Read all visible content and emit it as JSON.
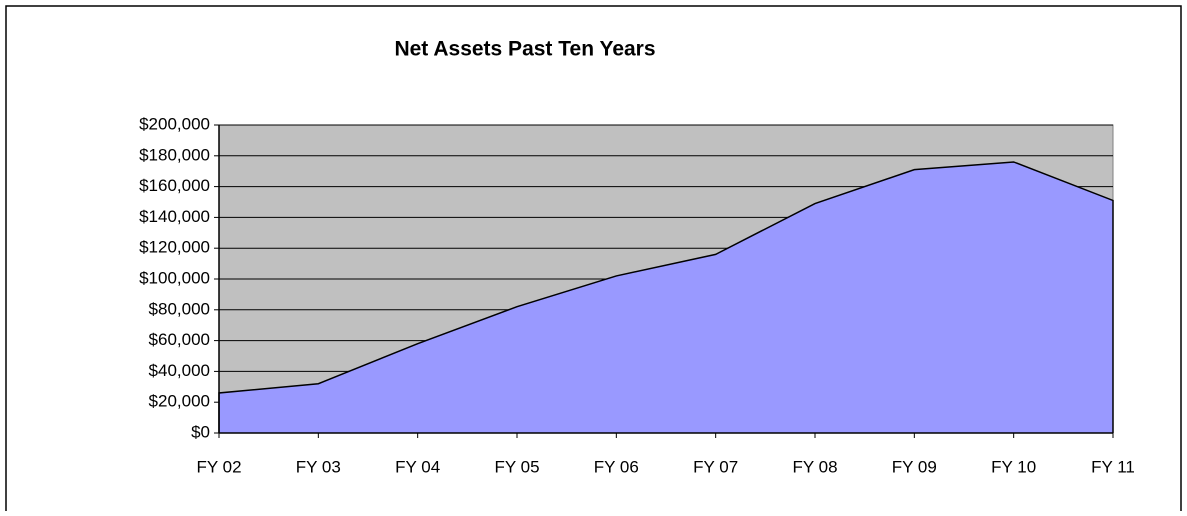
{
  "chart_data": {
    "type": "area",
    "title": "Net Assets Past Ten Years",
    "categories": [
      "FY 02",
      "FY 03",
      "FY 04",
      "FY 05",
      "FY 06",
      "FY 07",
      "FY 08",
      "FY 09",
      "FY 10",
      "FY 11"
    ],
    "values": [
      26000,
      32000,
      58000,
      82000,
      102000,
      116000,
      149000,
      171000,
      176000,
      151000
    ],
    "color": "#9999ff",
    "plot_background": "#c0c0c0",
    "grid": true,
    "ylim": [
      0,
      200000
    ],
    "yticks": [
      {
        "value": 0,
        "label": "$0"
      },
      {
        "value": 20000,
        "label": "$20,000"
      },
      {
        "value": 40000,
        "label": "$40,000"
      },
      {
        "value": 60000,
        "label": "$60,000"
      },
      {
        "value": 80000,
        "label": "$80,000"
      },
      {
        "value": 100000,
        "label": "$100,000"
      },
      {
        "value": 120000,
        "label": "$120,000"
      },
      {
        "value": 140000,
        "label": "$140,000"
      },
      {
        "value": 160000,
        "label": "$160,000"
      },
      {
        "value": 180000,
        "label": "$180,000"
      },
      {
        "value": 200000,
        "label": "$200,000"
      }
    ]
  }
}
